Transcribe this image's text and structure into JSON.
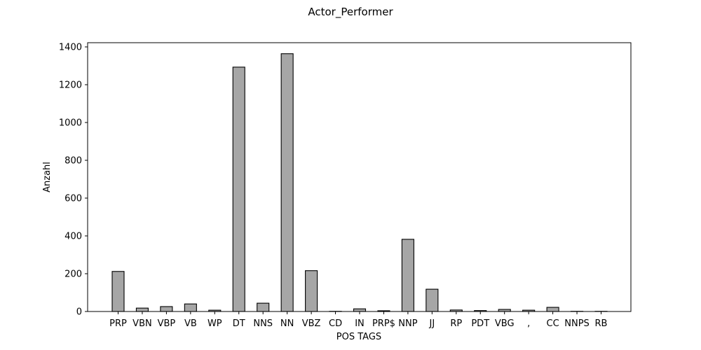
{
  "chart_data": {
    "type": "bar",
    "title": "Actor_Performer",
    "xlabel": "POS TAGS",
    "ylabel": "Anzahl",
    "ylim": [
      0,
      1400
    ],
    "yticks": [
      0,
      200,
      400,
      600,
      800,
      1000,
      1200,
      1400
    ],
    "categories": [
      "PRP",
      "VBN",
      "VBP",
      "VB",
      "WP",
      "DT",
      "NNS",
      "NN",
      "VBZ",
      "CD",
      "IN",
      "PRP$",
      "NNP",
      "JJ",
      "RP",
      "PDT",
      "VBG",
      ",",
      "CC",
      "NNPS",
      "RB"
    ],
    "values": [
      212,
      18,
      26,
      40,
      7,
      1293,
      44,
      1364,
      216,
      1,
      14,
      4,
      382,
      118,
      8,
      5,
      11,
      7,
      22,
      1,
      1
    ],
    "bar_color": "#a6a6a6",
    "edge_color": "#000000"
  }
}
